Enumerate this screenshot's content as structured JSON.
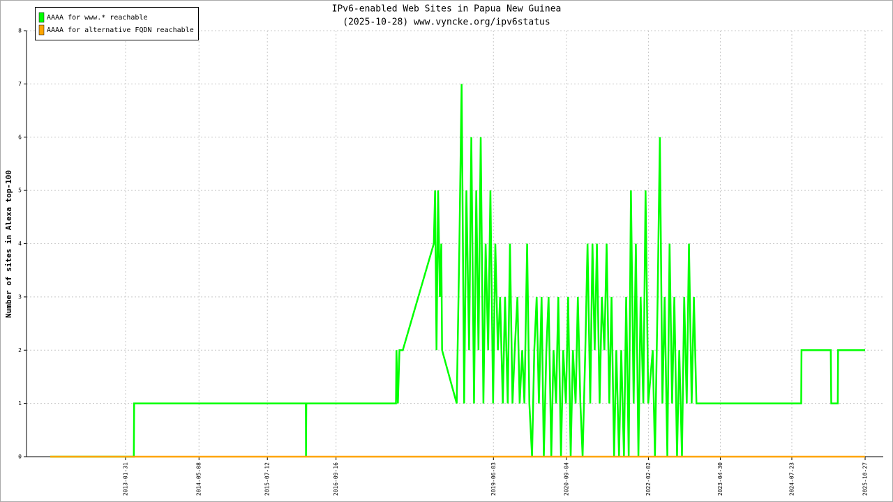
{
  "chart_data": {
    "type": "line",
    "title": "IPv6-enabled Web Sites in Papua New Guinea",
    "subtitle": "(2025-10-28) www.vyncke.org/ipv6status",
    "y_label": "Number of sites in Alexa top-100",
    "xlim": [
      "2011-05-19",
      "2026-02-18"
    ],
    "xticks": [
      "2013-01-31",
      "2014-05-08",
      "2015-07-12",
      "2016-09-16",
      "2019-06-03",
      "2020-09-04",
      "2022-02-02",
      "2023-04-30",
      "2024-07-23",
      "2025-10-27"
    ],
    "ylim": [
      0,
      8
    ],
    "yticks": [
      0,
      1,
      2,
      3,
      4,
      5,
      6,
      7,
      8
    ],
    "grid": true,
    "legend": "top-left",
    "series": [
      {
        "name": "AAAA for www.* reachable",
        "color": "#00ff00",
        "x": [
          "2011-10-15",
          "2013-03-24",
          "2013-03-26",
          "2016-03-10",
          "2016-03-11",
          "2016-03-13",
          "2017-09-28",
          "2017-10-01",
          "2017-10-10",
          "2017-10-20",
          "2017-11-10",
          "2018-05-24",
          "2018-06-01",
          "2018-06-10",
          "2018-06-20",
          "2018-07-01",
          "2018-07-10",
          "2018-07-15",
          "2018-10-15",
          "2018-11-01",
          "2018-11-15",
          "2018-12-01",
          "2018-12-15",
          "2019-01-01",
          "2019-01-15",
          "2019-02-01",
          "2019-02-15",
          "2019-03-01",
          "2019-03-15",
          "2019-04-01",
          "2019-04-15",
          "2019-05-01",
          "2019-05-15",
          "2019-06-01",
          "2019-06-15",
          "2019-07-01",
          "2019-07-15",
          "2019-08-01",
          "2019-08-15",
          "2019-09-01",
          "2019-09-15",
          "2019-10-01",
          "2019-10-15",
          "2019-11-01",
          "2019-11-15",
          "2019-12-01",
          "2019-12-15",
          "2020-01-01",
          "2020-01-15",
          "2020-02-01",
          "2020-02-15",
          "2020-03-01",
          "2020-03-15",
          "2020-04-01",
          "2020-04-15",
          "2020-05-01",
          "2020-05-15",
          "2020-06-01",
          "2020-06-15",
          "2020-07-01",
          "2020-07-15",
          "2020-08-01",
          "2020-08-15",
          "2020-09-01",
          "2020-09-15",
          "2020-10-01",
          "2020-10-15",
          "2020-11-01",
          "2020-11-15",
          "2020-12-01",
          "2020-12-15",
          "2021-01-01",
          "2021-01-15",
          "2021-02-01",
          "2021-02-15",
          "2021-03-01",
          "2021-03-15",
          "2021-04-01",
          "2021-04-15",
          "2021-05-01",
          "2021-05-15",
          "2021-06-01",
          "2021-06-15",
          "2021-07-01",
          "2021-07-15",
          "2021-08-01",
          "2021-08-15",
          "2021-09-01",
          "2021-09-15",
          "2021-10-01",
          "2021-10-15",
          "2021-11-01",
          "2021-11-15",
          "2021-12-01",
          "2021-12-15",
          "2022-01-01",
          "2022-01-15",
          "2022-02-01",
          "2022-03-01",
          "2022-03-15",
          "2022-04-01",
          "2022-04-15",
          "2022-05-01",
          "2022-05-15",
          "2022-06-01",
          "2022-06-15",
          "2022-07-01",
          "2022-07-15",
          "2022-08-01",
          "2022-08-15",
          "2022-09-01",
          "2022-09-15",
          "2022-10-01",
          "2022-10-15",
          "2022-11-01",
          "2022-11-15",
          "2022-12-01",
          "2023-01-01",
          "2024-09-20",
          "2024-09-22",
          "2025-03-25",
          "2025-03-28",
          "2025-05-08",
          "2025-05-10",
          "2025-10-27"
        ],
        "values": [
          0,
          0,
          1,
          1,
          0,
          1,
          1,
          2,
          1,
          2,
          2,
          4,
          5,
          2,
          5,
          3,
          4,
          2,
          1,
          4,
          7,
          1,
          5,
          2,
          6,
          1,
          5,
          2,
          6,
          1,
          4,
          2,
          5,
          1,
          4,
          2,
          3,
          1,
          3,
          1,
          4,
          1,
          2,
          3,
          1,
          2,
          1,
          4,
          1,
          0,
          2,
          3,
          1,
          3,
          0,
          2,
          3,
          0,
          2,
          1,
          3,
          0,
          2,
          1,
          3,
          0,
          2,
          1,
          3,
          1,
          0,
          2,
          4,
          1,
          4,
          2,
          4,
          1,
          3,
          2,
          4,
          1,
          3,
          0,
          2,
          0,
          2,
          0,
          3,
          0,
          5,
          1,
          4,
          0,
          3,
          1,
          5,
          1,
          2,
          0,
          3,
          6,
          1,
          3,
          0,
          4,
          1,
          3,
          0,
          2,
          0,
          3,
          1,
          4,
          1,
          3,
          1,
          1,
          1,
          2,
          2,
          1,
          1,
          2,
          2
        ]
      },
      {
        "name": "AAAA for alternative FQDN reachable",
        "color": "#ffa500",
        "x": [
          "2011-10-15",
          "2025-10-27"
        ],
        "values": [
          0,
          0
        ]
      }
    ]
  }
}
